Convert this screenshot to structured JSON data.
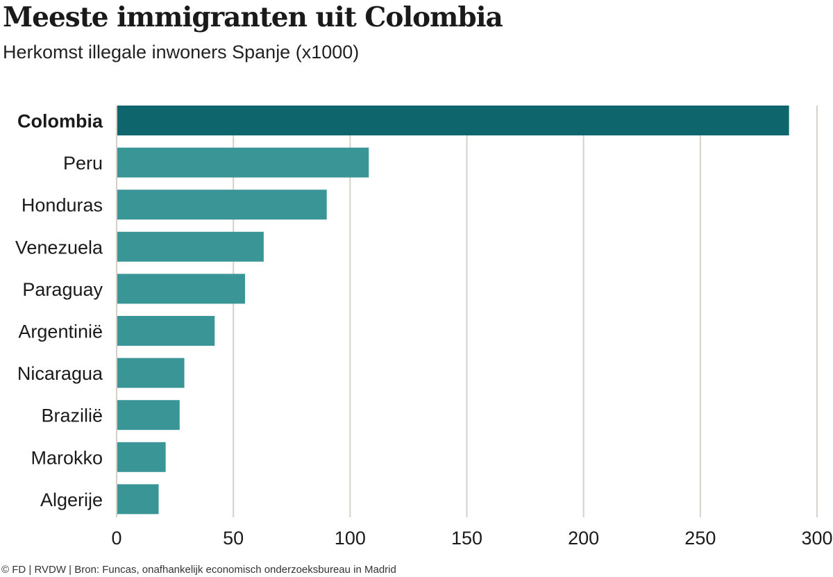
{
  "header": {
    "title": "Meeste immigranten uit Colombia",
    "subtitle": "Herkomst illegale inwoners Spanje (x1000)"
  },
  "footer": {
    "source": "© FD | RVDW | Bron: Funcas, onafhankelijk economisch onderzoeksbureau in Madrid"
  },
  "colors": {
    "highlight": "#0e666c",
    "bar": "#3a9696",
    "grid": "#d6d0c8"
  },
  "chart_data": {
    "type": "bar",
    "orientation": "horizontal",
    "title": "Meeste immigranten uit Colombia",
    "subtitle": "Herkomst illegale inwoners Spanje (x1000)",
    "categories": [
      "Colombia",
      "Peru",
      "Honduras",
      "Venezuela",
      "Paraguay",
      "Argentinië",
      "Nicaragua",
      "Brazilië",
      "Marokko",
      "Algerije"
    ],
    "values": [
      288,
      108,
      90,
      63,
      55,
      42,
      29,
      27,
      21,
      18
    ],
    "highlight": "Colombia",
    "xlim": [
      0,
      300
    ],
    "xticks": [
      0,
      50,
      100,
      150,
      200,
      250,
      300
    ],
    "grid": "vertical",
    "legend": "none"
  }
}
